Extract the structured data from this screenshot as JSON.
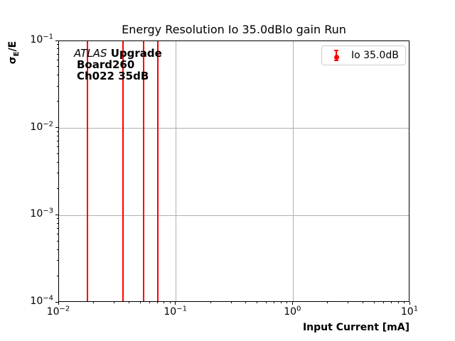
{
  "figure": {
    "background": "#ffffff"
  },
  "chart_data": {
    "type": "errorbar",
    "title": "Energy Resolution Io 35.0dBlo gain Run",
    "xlabel": "Input Current [mA]",
    "ylabel": "σE/E",
    "ylabel_parts": {
      "sigma": "σ",
      "sub": "E",
      "rest": "/E"
    },
    "xscale": "log",
    "yscale": "log",
    "xlim": [
      0.01,
      10
    ],
    "ylim": [
      0.0001,
      0.1
    ],
    "x_tick_exponents": [
      -2,
      -1,
      0,
      1
    ],
    "y_tick_exponents": [
      -1,
      -2,
      -3,
      -4
    ],
    "grid": true,
    "grid_color": "#b0b0b0",
    "axis_color": "#000000",
    "legend_position": "upper right",
    "series": [
      {
        "name": "Io 35.0dB",
        "color": "#ff0000",
        "marker": "circle-with-errorbar",
        "x": [
          0.0175,
          0.035,
          0.0525,
          0.07
        ],
        "y": [
          null,
          null,
          null,
          null
        ],
        "errorbars_span_full_yrange": true
      }
    ]
  },
  "annotation": {
    "atlas": "ATLAS",
    "upgrade": "Upgrade",
    "board": "Board260",
    "channel": "Ch022 35dB"
  },
  "legend": {
    "label": "Io 35.0dB",
    "marker_color": "#ff0000"
  }
}
